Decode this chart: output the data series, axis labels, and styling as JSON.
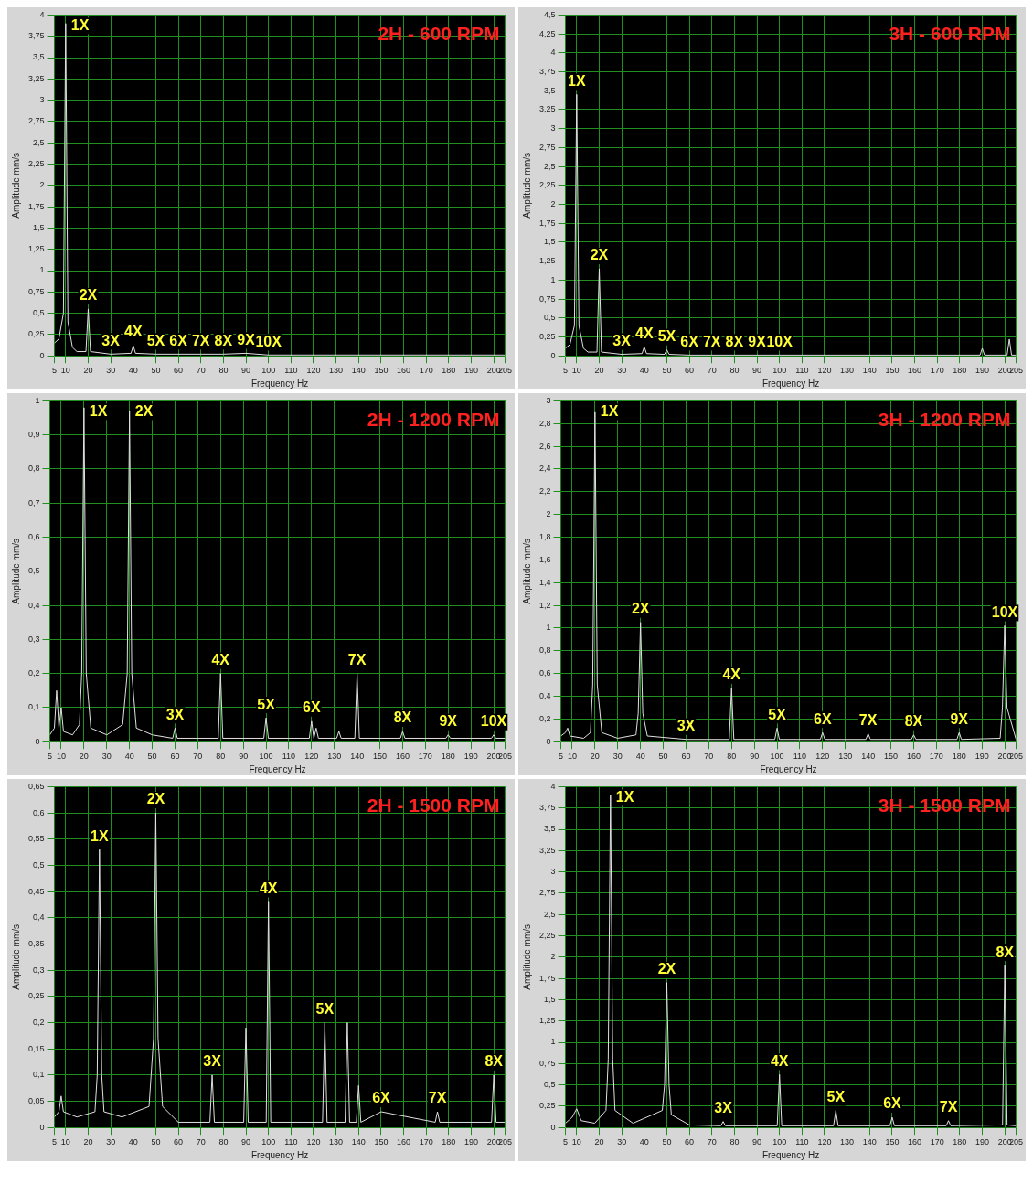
{
  "chart_data": [
    {
      "type": "line",
      "title": "2H - 600 RPM",
      "xlabel": "Frequency Hz",
      "ylabel": "Amplitude mm/s",
      "grid": true,
      "xlim": [
        5,
        205
      ],
      "ylim": [
        0,
        4
      ],
      "xticks": [
        5,
        10,
        20,
        30,
        40,
        50,
        60,
        70,
        80,
        90,
        100,
        110,
        120,
        130,
        140,
        150,
        160,
        170,
        180,
        190,
        200,
        205
      ],
      "yticks": [
        0,
        {
          "value": 0.25,
          "label": "0,25"
        },
        {
          "value": 0.5,
          "label": "0,5"
        },
        {
          "value": 0.75,
          "label": "0,75"
        },
        1,
        {
          "value": 1.25,
          "label": "1,25"
        },
        {
          "value": 1.5,
          "label": "1,5"
        },
        {
          "value": 1.75,
          "label": "1,75"
        },
        2,
        {
          "value": 2.25,
          "label": "2,25"
        },
        {
          "value": 2.5,
          "label": "2,5"
        },
        {
          "value": 2.75,
          "label": "2,75"
        },
        3,
        {
          "value": 3.25,
          "label": "3,25"
        },
        {
          "value": 3.5,
          "label": "3,5"
        },
        {
          "value": 3.75,
          "label": "3,75"
        },
        4
      ],
      "series": [
        {
          "color": "#e0e0e0",
          "x": [
            5,
            7,
            9,
            10,
            11,
            13,
            15,
            19,
            20,
            21,
            30,
            39,
            40,
            41,
            50,
            60,
            70,
            80,
            90,
            100,
            150,
            205
          ],
          "values": [
            0.15,
            0.2,
            0.5,
            3.9,
            0.4,
            0.1,
            0.05,
            0.05,
            0.55,
            0.05,
            0.02,
            0.03,
            0.12,
            0.03,
            0.02,
            0.02,
            0.02,
            0.02,
            0.03,
            0.01,
            0.01,
            0.01
          ]
        }
      ],
      "annotations": [
        {
          "text": "1X",
          "x": 10,
          "y": 3.9
        },
        {
          "text": "2X",
          "x": 20,
          "y": 0.55
        },
        {
          "text": "3X",
          "x": 30,
          "y": 0.02
        },
        {
          "text": "4X",
          "x": 40,
          "y": 0.12
        },
        {
          "text": "5X",
          "x": 50,
          "y": 0.02
        },
        {
          "text": "6X",
          "x": 60,
          "y": 0.02
        },
        {
          "text": "7X",
          "x": 70,
          "y": 0.02
        },
        {
          "text": "8X",
          "x": 80,
          "y": 0.02
        },
        {
          "text": "9X",
          "x": 90,
          "y": 0.03
        },
        {
          "text": "10X",
          "x": 100,
          "y": 0.01
        }
      ]
    },
    {
      "type": "line",
      "title": "3H - 600 RPM",
      "xlabel": "Frequency Hz",
      "ylabel": "Amplitude mm/s",
      "grid": true,
      "xlim": [
        5,
        205
      ],
      "ylim": [
        0,
        4.5
      ],
      "xticks": [
        5,
        10,
        20,
        30,
        40,
        50,
        60,
        70,
        80,
        90,
        100,
        110,
        120,
        130,
        140,
        150,
        160,
        170,
        180,
        190,
        200,
        205
      ],
      "yticks": [
        0,
        {
          "value": 0.25,
          "label": "0,25"
        },
        {
          "value": 0.5,
          "label": "0,5"
        },
        {
          "value": 0.75,
          "label": "0,75"
        },
        1,
        {
          "value": 1.25,
          "label": "1,25"
        },
        {
          "value": 1.5,
          "label": "1,5"
        },
        {
          "value": 1.75,
          "label": "1,75"
        },
        2,
        {
          "value": 2.25,
          "label": "2,25"
        },
        {
          "value": 2.5,
          "label": "2,5"
        },
        {
          "value": 2.75,
          "label": "2,75"
        },
        3,
        {
          "value": 3.25,
          "label": "3,25"
        },
        {
          "value": 3.5,
          "label": "3,5"
        },
        {
          "value": 3.75,
          "label": "3,75"
        },
        4,
        {
          "value": 4.25,
          "label": "4,25"
        },
        {
          "value": 4.5,
          "label": "4,5"
        }
      ],
      "series": [
        {
          "color": "#e0e0e0",
          "x": [
            5,
            7,
            9,
            10,
            11,
            13,
            15,
            19,
            20,
            21,
            30,
            39,
            40,
            41,
            49,
            50,
            51,
            60,
            70,
            80,
            90,
            100,
            150,
            189,
            190,
            191,
            201,
            202,
            203,
            205
          ],
          "values": [
            0.1,
            0.15,
            0.4,
            3.45,
            0.4,
            0.1,
            0.05,
            0.05,
            1.15,
            0.05,
            0.02,
            0.03,
            0.12,
            0.03,
            0.02,
            0.08,
            0.02,
            0.01,
            0.01,
            0.01,
            0.01,
            0.01,
            0.01,
            0.01,
            0.1,
            0.01,
            0.01,
            0.22,
            0.01,
            0.01
          ]
        }
      ],
      "annotations": [
        {
          "text": "1X",
          "x": 10,
          "y": 3.45
        },
        {
          "text": "2X",
          "x": 20,
          "y": 1.15
        },
        {
          "text": "3X",
          "x": 30,
          "y": 0.02
        },
        {
          "text": "4X",
          "x": 40,
          "y": 0.12
        },
        {
          "text": "5X",
          "x": 50,
          "y": 0.08
        },
        {
          "text": "6X",
          "x": 60,
          "y": 0.01
        },
        {
          "text": "7X",
          "x": 70,
          "y": 0.01
        },
        {
          "text": "8X",
          "x": 80,
          "y": 0.01
        },
        {
          "text": "9X",
          "x": 90,
          "y": 0.01
        },
        {
          "text": "10X",
          "x": 100,
          "y": 0.01
        }
      ]
    },
    {
      "type": "line",
      "title": "2H - 1200 RPM",
      "xlabel": "Frequency Hz",
      "ylabel": "Amplitude mm/s",
      "grid": true,
      "xlim": [
        5,
        205
      ],
      "ylim": [
        0,
        1
      ],
      "xticks": [
        5,
        10,
        20,
        30,
        40,
        50,
        60,
        70,
        80,
        90,
        100,
        110,
        120,
        130,
        140,
        150,
        160,
        170,
        180,
        190,
        200,
        205
      ],
      "yticks": [
        0,
        {
          "value": 0.1,
          "label": "0,1"
        },
        {
          "value": 0.2,
          "label": "0,2"
        },
        {
          "value": 0.3,
          "label": "0,3"
        },
        {
          "value": 0.4,
          "label": "0,4"
        },
        {
          "value": 0.5,
          "label": "0,5"
        },
        {
          "value": 0.6,
          "label": "0,6"
        },
        {
          "value": 0.7,
          "label": "0,7"
        },
        {
          "value": 0.8,
          "label": "0,8"
        },
        {
          "value": 0.9,
          "label": "0,9"
        },
        1
      ],
      "series": [
        {
          "color": "#e0e0e0",
          "x": [
            5,
            7,
            8,
            9,
            10,
            11,
            15,
            18,
            19,
            20,
            21,
            23,
            30,
            37,
            39,
            40,
            41,
            43,
            50,
            59,
            60,
            61,
            79,
            80,
            81,
            99,
            100,
            101,
            119,
            120,
            121,
            122,
            123,
            131,
            132,
            133,
            139,
            140,
            141,
            159,
            160,
            161,
            179,
            180,
            181,
            199,
            200,
            201,
            205
          ],
          "values": [
            0.02,
            0.04,
            0.15,
            0.04,
            0.1,
            0.03,
            0.02,
            0.05,
            0.2,
            0.98,
            0.2,
            0.04,
            0.02,
            0.05,
            0.2,
            0.97,
            0.2,
            0.04,
            0.02,
            0.01,
            0.04,
            0.01,
            0.01,
            0.2,
            0.01,
            0.01,
            0.07,
            0.01,
            0.01,
            0.06,
            0.01,
            0.04,
            0.01,
            0.01,
            0.03,
            0.01,
            0.01,
            0.2,
            0.01,
            0.01,
            0.03,
            0.01,
            0.01,
            0.02,
            0.01,
            0.01,
            0.02,
            0.01,
            0.01
          ]
        }
      ],
      "annotations": [
        {
          "text": "1X",
          "x": 20,
          "y": 0.98
        },
        {
          "text": "2X",
          "x": 40,
          "y": 0.97
        },
        {
          "text": "3X",
          "x": 60,
          "y": 0.04
        },
        {
          "text": "4X",
          "x": 80,
          "y": 0.2
        },
        {
          "text": "5X",
          "x": 100,
          "y": 0.07
        },
        {
          "text": "6X",
          "x": 120,
          "y": 0.06
        },
        {
          "text": "7X",
          "x": 140,
          "y": 0.2
        },
        {
          "text": "8X",
          "x": 160,
          "y": 0.03
        },
        {
          "text": "9X",
          "x": 180,
          "y": 0.02
        },
        {
          "text": "10X",
          "x": 200,
          "y": 0.02
        }
      ]
    },
    {
      "type": "line",
      "title": "3H - 1200 RPM",
      "xlabel": "Frequency Hz",
      "ylabel": "Amplitude mm/s",
      "grid": true,
      "xlim": [
        5,
        205
      ],
      "ylim": [
        0,
        3
      ],
      "xticks": [
        5,
        10,
        20,
        30,
        40,
        50,
        60,
        70,
        80,
        90,
        100,
        110,
        120,
        130,
        140,
        150,
        160,
        170,
        180,
        190,
        200,
        205
      ],
      "yticks": [
        0,
        {
          "value": 0.2,
          "label": "0,2"
        },
        {
          "value": 0.4,
          "label": "0,4"
        },
        {
          "value": 0.6,
          "label": "0,6"
        },
        {
          "value": 0.8,
          "label": "0,8"
        },
        1,
        {
          "value": 1.2,
          "label": "1,2"
        },
        {
          "value": 1.4,
          "label": "1,4"
        },
        {
          "value": 1.6,
          "label": "1,6"
        },
        {
          "value": 1.8,
          "label": "1,8"
        },
        2,
        {
          "value": 2.2,
          "label": "2,2"
        },
        {
          "value": 2.4,
          "label": "2,4"
        },
        {
          "value": 2.6,
          "label": "2,6"
        },
        {
          "value": 2.8,
          "label": "2,8"
        },
        3
      ],
      "series": [
        {
          "color": "#e0e0e0",
          "x": [
            5,
            7,
            8,
            9,
            15,
            18,
            19,
            20,
            21,
            23,
            30,
            38,
            39,
            40,
            41,
            43,
            60,
            79,
            80,
            81,
            99,
            100,
            101,
            119,
            120,
            121,
            139,
            140,
            141,
            159,
            160,
            161,
            179,
            180,
            181,
            198,
            199,
            200,
            201,
            205
          ],
          "values": [
            0.05,
            0.08,
            0.12,
            0.05,
            0.03,
            0.08,
            0.5,
            2.9,
            0.5,
            0.08,
            0.03,
            0.06,
            0.25,
            1.05,
            0.25,
            0.05,
            0.02,
            0.02,
            0.47,
            0.02,
            0.02,
            0.12,
            0.02,
            0.02,
            0.08,
            0.02,
            0.02,
            0.07,
            0.02,
            0.02,
            0.06,
            0.02,
            0.02,
            0.08,
            0.02,
            0.03,
            0.3,
            1.02,
            0.3,
            0.02
          ]
        }
      ],
      "annotations": [
        {
          "text": "1X",
          "x": 20,
          "y": 2.9
        },
        {
          "text": "2X",
          "x": 40,
          "y": 1.05
        },
        {
          "text": "3X",
          "x": 60,
          "y": 0.02
        },
        {
          "text": "4X",
          "x": 80,
          "y": 0.47
        },
        {
          "text": "5X",
          "x": 100,
          "y": 0.12
        },
        {
          "text": "6X",
          "x": 120,
          "y": 0.08
        },
        {
          "text": "7X",
          "x": 140,
          "y": 0.07
        },
        {
          "text": "8X",
          "x": 160,
          "y": 0.06
        },
        {
          "text": "9X",
          "x": 180,
          "y": 0.08
        },
        {
          "text": "10X",
          "x": 200,
          "y": 1.02
        }
      ]
    },
    {
      "type": "line",
      "title": "2H - 1500 RPM",
      "xlabel": "Frequency Hz",
      "ylabel": "Amplitude mm/s",
      "grid": true,
      "xlim": [
        5,
        205
      ],
      "ylim": [
        0,
        0.65
      ],
      "xticks": [
        5,
        10,
        20,
        30,
        40,
        50,
        60,
        70,
        80,
        90,
        100,
        110,
        120,
        130,
        140,
        150,
        160,
        170,
        180,
        190,
        200,
        205
      ],
      "yticks": [
        0,
        {
          "value": 0.05,
          "label": "0,05"
        },
        {
          "value": 0.1,
          "label": "0,1"
        },
        {
          "value": 0.15,
          "label": "0,15"
        },
        {
          "value": 0.2,
          "label": "0,2"
        },
        {
          "value": 0.25,
          "label": "0,25"
        },
        {
          "value": 0.3,
          "label": "0,3"
        },
        {
          "value": 0.35,
          "label": "0,35"
        },
        {
          "value": 0.4,
          "label": "0,4"
        },
        {
          "value": 0.45,
          "label": "0,45"
        },
        {
          "value": 0.5,
          "label": "0,5"
        },
        {
          "value": 0.55,
          "label": "0,55"
        },
        {
          "value": 0.6,
          "label": "0,6"
        },
        {
          "value": 0.65,
          "label": "0,65"
        }
      ],
      "series": [
        {
          "color": "#e0e0e0",
          "x": [
            5,
            7,
            8,
            9,
            15,
            23,
            24,
            25,
            26,
            27,
            35,
            47,
            49,
            50,
            51,
            53,
            60,
            74,
            75,
            76,
            89,
            90,
            91,
            99,
            100,
            101,
            124,
            125,
            126,
            134,
            135,
            136,
            139,
            140,
            141,
            150,
            174,
            175,
            176,
            199,
            200,
            201,
            205
          ],
          "values": [
            0.02,
            0.03,
            0.06,
            0.03,
            0.02,
            0.03,
            0.1,
            0.53,
            0.1,
            0.03,
            0.02,
            0.04,
            0.17,
            0.6,
            0.17,
            0.04,
            0.01,
            0.01,
            0.1,
            0.01,
            0.01,
            0.19,
            0.01,
            0.01,
            0.43,
            0.01,
            0.01,
            0.2,
            0.01,
            0.01,
            0.2,
            0.01,
            0.01,
            0.08,
            0.01,
            0.03,
            0.01,
            0.03,
            0.01,
            0.01,
            0.1,
            0.01,
            0.01
          ]
        }
      ],
      "annotations": [
        {
          "text": "1X",
          "x": 25,
          "y": 0.53
        },
        {
          "text": "2X",
          "x": 50,
          "y": 0.6
        },
        {
          "text": "3X",
          "x": 75,
          "y": 0.1
        },
        {
          "text": "4X",
          "x": 100,
          "y": 0.43
        },
        {
          "text": "5X",
          "x": 125,
          "y": 0.2
        },
        {
          "text": "6X",
          "x": 150,
          "y": 0.03
        },
        {
          "text": "7X",
          "x": 175,
          "y": 0.03
        },
        {
          "text": "8X",
          "x": 200,
          "y": 0.1
        }
      ]
    },
    {
      "type": "line",
      "title": "3H - 1500 RPM",
      "xlabel": "Frequency Hz",
      "ylabel": "Amplitude mm/s",
      "grid": true,
      "xlim": [
        5,
        205
      ],
      "ylim": [
        0,
        4
      ],
      "xticks": [
        5,
        10,
        20,
        30,
        40,
        50,
        60,
        70,
        80,
        90,
        100,
        110,
        120,
        130,
        140,
        150,
        160,
        170,
        180,
        190,
        200,
        205
      ],
      "yticks": [
        0,
        {
          "value": 0.25,
          "label": "0,25"
        },
        {
          "value": 0.5,
          "label": "0,5"
        },
        {
          "value": 0.75,
          "label": "0,75"
        },
        1,
        {
          "value": 1.25,
          "label": "1,25"
        },
        {
          "value": 1.5,
          "label": "1,5"
        },
        {
          "value": 1.75,
          "label": "1,75"
        },
        2,
        {
          "value": 2.25,
          "label": "2,25"
        },
        {
          "value": 2.5,
          "label": "2,5"
        },
        {
          "value": 2.75,
          "label": "2,75"
        },
        3,
        {
          "value": 3.25,
          "label": "3,25"
        },
        {
          "value": 3.5,
          "label": "3,5"
        },
        {
          "value": 3.75,
          "label": "3,75"
        },
        4
      ],
      "series": [
        {
          "color": "#e0e0e0",
          "x": [
            5,
            8,
            10,
            12,
            18,
            23,
            24,
            25,
            26,
            27,
            35,
            48,
            49,
            50,
            51,
            52,
            60,
            74,
            75,
            76,
            99,
            100,
            101,
            124,
            125,
            126,
            149,
            150,
            151,
            174,
            175,
            176,
            199,
            200,
            201,
            205
          ],
          "values": [
            0.05,
            0.12,
            0.22,
            0.08,
            0.05,
            0.2,
            0.8,
            3.9,
            0.8,
            0.2,
            0.05,
            0.2,
            0.5,
            1.7,
            0.5,
            0.15,
            0.03,
            0.02,
            0.07,
            0.02,
            0.02,
            0.62,
            0.02,
            0.02,
            0.2,
            0.02,
            0.02,
            0.12,
            0.02,
            0.02,
            0.08,
            0.02,
            0.03,
            1.9,
            0.03,
            0.02
          ]
        }
      ],
      "annotations": [
        {
          "text": "1X",
          "x": 25,
          "y": 3.9
        },
        {
          "text": "2X",
          "x": 50,
          "y": 1.7
        },
        {
          "text": "3X",
          "x": 75,
          "y": 0.07
        },
        {
          "text": "4X",
          "x": 100,
          "y": 0.62
        },
        {
          "text": "5X",
          "x": 125,
          "y": 0.2
        },
        {
          "text": "6X",
          "x": 150,
          "y": 0.12
        },
        {
          "text": "7X",
          "x": 175,
          "y": 0.08
        },
        {
          "text": "8X",
          "x": 200,
          "y": 1.9
        }
      ]
    }
  ]
}
